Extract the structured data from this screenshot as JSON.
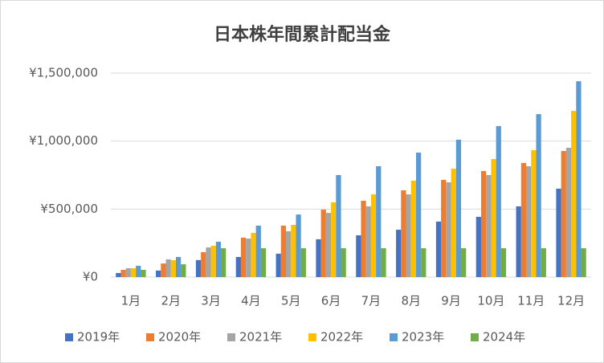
{
  "chart_data": {
    "type": "bar",
    "title": "日本株年間累計配当金",
    "categories": [
      "1月",
      "2月",
      "3月",
      "4月",
      "5月",
      "6月",
      "7月",
      "8月",
      "9月",
      "10月",
      "11月",
      "12月"
    ],
    "series": [
      {
        "name": "2019年",
        "color": "#4472c4",
        "values": [
          30000,
          48000,
          125000,
          148000,
          172000,
          278000,
          307000,
          348000,
          408000,
          443000,
          520000,
          650000
        ]
      },
      {
        "name": "2020年",
        "color": "#ed7d31",
        "values": [
          53000,
          100000,
          183000,
          290000,
          378000,
          496000,
          561000,
          638000,
          715000,
          780000,
          839000,
          927000
        ]
      },
      {
        "name": "2021年",
        "color": "#a5a5a5",
        "values": [
          65000,
          130000,
          218000,
          283000,
          337000,
          472000,
          520000,
          608000,
          697000,
          750000,
          815000,
          951000
        ]
      },
      {
        "name": "2022年",
        "color": "#ffc000",
        "values": [
          65000,
          124000,
          230000,
          325000,
          384000,
          549000,
          608000,
          709000,
          797000,
          868000,
          933000,
          1222000
        ]
      },
      {
        "name": "2023年",
        "color": "#5b9bd5",
        "values": [
          83000,
          148000,
          260000,
          378000,
          460000,
          750000,
          815000,
          915000,
          1010000,
          1110000,
          1198000,
          1440000
        ]
      },
      {
        "name": "2024年",
        "color": "#70ad47",
        "values": [
          53000,
          94000,
          212000,
          212000,
          212000,
          212000,
          212000,
          212000,
          212000,
          212000,
          212000,
          212000
        ]
      }
    ],
    "ylim": [
      0,
      1500000
    ],
    "yticks": [
      {
        "value": 0,
        "label": "¥0"
      },
      {
        "value": 500000,
        "label": "¥500,000"
      },
      {
        "value": 1000000,
        "label": "¥1,000,000"
      },
      {
        "value": 1500000,
        "label": "¥1,500,000"
      }
    ],
    "grid": true,
    "legend": "bottom"
  }
}
